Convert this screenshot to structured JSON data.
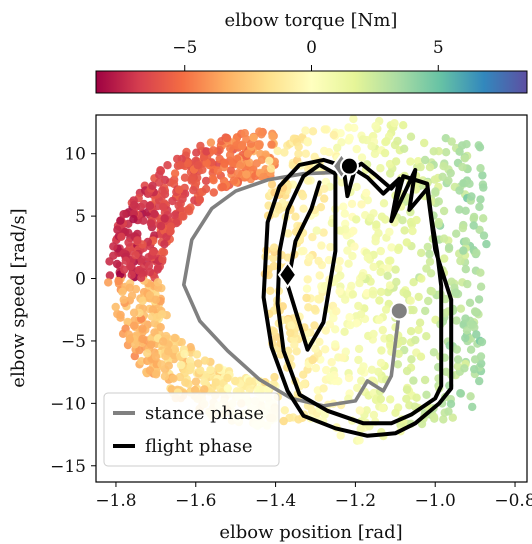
{
  "chart_data": {
    "type": "scatter",
    "xlabel": "elbow position [rad]",
    "ylabel": "elbow speed [rad/s]",
    "xlim": [
      -1.85,
      -0.77
    ],
    "ylim": [
      -16.3,
      13.1
    ],
    "xticks": [
      -1.8,
      -1.6,
      -1.4,
      -1.2,
      -1.0,
      -0.8
    ],
    "xtick_labels": [
      "−1.8",
      "−1.6",
      "−1.4",
      "−1.2",
      "−1.0",
      "−0.8"
    ],
    "yticks": [
      10,
      5,
      0,
      -5,
      -10,
      -15
    ],
    "ytick_labels": [
      "10",
      "5",
      "0",
      "−5",
      "−10",
      "−15"
    ],
    "colorbar": {
      "label": "elbow torque [Nm]",
      "range": [
        -8.5,
        8.5
      ],
      "ticks": [
        -5,
        0,
        5
      ],
      "tick_labels": [
        "−5",
        "0",
        "5"
      ],
      "colormap": "Spectral",
      "colors": [
        "#9e0142",
        "#d53e4f",
        "#f46d43",
        "#fdae61",
        "#fee08b",
        "#ffffbf",
        "#e6f598",
        "#abdda4",
        "#66c2a5",
        "#3288bd",
        "#5e4fa2"
      ]
    },
    "legend": {
      "placement": "lower-left",
      "entries": [
        {
          "label": "stance phase",
          "color": "#808080"
        },
        {
          "label": "flight phase",
          "color": "#000000"
        }
      ]
    },
    "series": [
      {
        "name": "stance phase",
        "color": "#808080",
        "points": [
          [
            -1.09,
            -2.6
          ],
          [
            -1.11,
            -7.8
          ],
          [
            -1.13,
            -9.0
          ],
          [
            -1.17,
            -8.2
          ],
          [
            -1.2,
            -9.8
          ],
          [
            -1.28,
            -10.2
          ],
          [
            -1.36,
            -9.6
          ],
          [
            -1.44,
            -8.1
          ],
          [
            -1.52,
            -5.8
          ],
          [
            -1.59,
            -3.4
          ],
          [
            -1.63,
            -0.5
          ],
          [
            -1.61,
            3.1
          ],
          [
            -1.56,
            5.6
          ],
          [
            -1.5,
            7.0
          ],
          [
            -1.42,
            7.9
          ],
          [
            -1.33,
            8.4
          ],
          [
            -1.25,
            8.5
          ]
        ],
        "markers": [
          {
            "shape": "diamond",
            "x": -1.235,
            "y": 9.0
          },
          {
            "shape": "circle",
            "x": -1.09,
            "y": -2.6
          }
        ]
      },
      {
        "name": "flight phase",
        "color": "#000000",
        "points": [
          [
            -1.215,
            9.0
          ],
          [
            -1.17,
            8.1
          ],
          [
            -1.13,
            6.8
          ],
          [
            -1.09,
            8.0
          ],
          [
            -1.11,
            4.6
          ],
          [
            -1.05,
            8.7
          ],
          [
            -1.065,
            5.5
          ],
          [
            -1.02,
            7.2
          ],
          [
            -1.0,
            2.3
          ],
          [
            -0.96,
            -1.7
          ],
          [
            -0.96,
            -8.8
          ],
          [
            -0.99,
            -10.0
          ],
          [
            -1.05,
            -11.6
          ],
          [
            -1.1,
            -12.4
          ],
          [
            -1.17,
            -12.6
          ],
          [
            -1.25,
            -12.0
          ],
          [
            -1.33,
            -11.0
          ],
          [
            -1.37,
            -9.0
          ],
          [
            -1.41,
            -5.5
          ],
          [
            -1.43,
            -1.5
          ],
          [
            -1.42,
            4.5
          ],
          [
            -1.39,
            7.4
          ],
          [
            -1.34,
            9.1
          ],
          [
            -1.28,
            9.5
          ],
          [
            -1.23,
            9.0
          ],
          [
            -1.22,
            6.6
          ],
          [
            -1.2,
            8.9
          ],
          [
            -1.185,
            9.2
          ],
          [
            -1.15,
            8.3
          ],
          [
            -1.11,
            7.2
          ],
          [
            -1.09,
            8.0
          ],
          [
            -1.1,
            5.9
          ],
          [
            -1.08,
            8.2
          ],
          [
            -1.02,
            7.6
          ],
          [
            -1.01,
            5.0
          ],
          [
            -0.995,
            2.1
          ],
          [
            -0.985,
            -0.6
          ],
          [
            -0.985,
            -8.6
          ],
          [
            -1.0,
            -9.6
          ],
          [
            -1.06,
            -10.9
          ],
          [
            -1.11,
            -11.6
          ],
          [
            -1.18,
            -11.6
          ],
          [
            -1.27,
            -10.6
          ],
          [
            -1.34,
            -9.3
          ],
          [
            -1.38,
            -5.8
          ],
          [
            -1.395,
            -2.0
          ],
          [
            -1.39,
            2.2
          ],
          [
            -1.37,
            5.5
          ],
          [
            -1.33,
            8.2
          ],
          [
            -1.29,
            9.1
          ],
          [
            -1.25,
            8.4
          ],
          [
            -1.25,
            2.2
          ],
          [
            -1.28,
            -3.5
          ],
          [
            -1.32,
            -5.7
          ],
          [
            -1.37,
            -0.5
          ],
          [
            -1.35,
            3.0
          ],
          [
            -1.31,
            5.6
          ],
          [
            -1.29,
            7.7
          ]
        ],
        "markers": [
          {
            "shape": "circle",
            "x": -1.215,
            "y": 9.0
          },
          {
            "shape": "diamond",
            "x": -1.37,
            "y": 0.3
          }
        ]
      }
    ]
  }
}
